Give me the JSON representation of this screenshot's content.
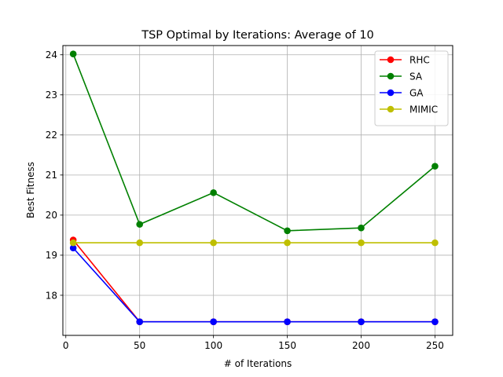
{
  "chart_data": {
    "type": "line",
    "title": "TSP Optimal by Iterations: Average of 10",
    "xlabel": "# of Iterations",
    "ylabel": "Best Fitness",
    "x": [
      5,
      50,
      100,
      150,
      200,
      250
    ],
    "xlim": [
      -2,
      262
    ],
    "ylim": [
      17.0,
      24.23
    ],
    "xticks": [
      0,
      50,
      100,
      150,
      200,
      250
    ],
    "yticks": [
      18,
      19,
      20,
      21,
      22,
      23,
      24
    ],
    "grid": true,
    "legend_position": "top-right",
    "series": [
      {
        "name": "RHC",
        "color": "#ff0000",
        "values": [
          19.38,
          17.34,
          17.34,
          17.34,
          17.34,
          17.34
        ]
      },
      {
        "name": "SA",
        "color": "#008000",
        "values": [
          24.02,
          19.77,
          20.56,
          19.61,
          19.68,
          21.22
        ]
      },
      {
        "name": "GA",
        "color": "#0000ff",
        "values": [
          19.18,
          17.34,
          17.34,
          17.34,
          17.34,
          17.34
        ]
      },
      {
        "name": "MIMIC",
        "color": "#bfbf00",
        "values": [
          19.31,
          19.31,
          19.31,
          19.31,
          19.31,
          19.31
        ]
      }
    ]
  }
}
